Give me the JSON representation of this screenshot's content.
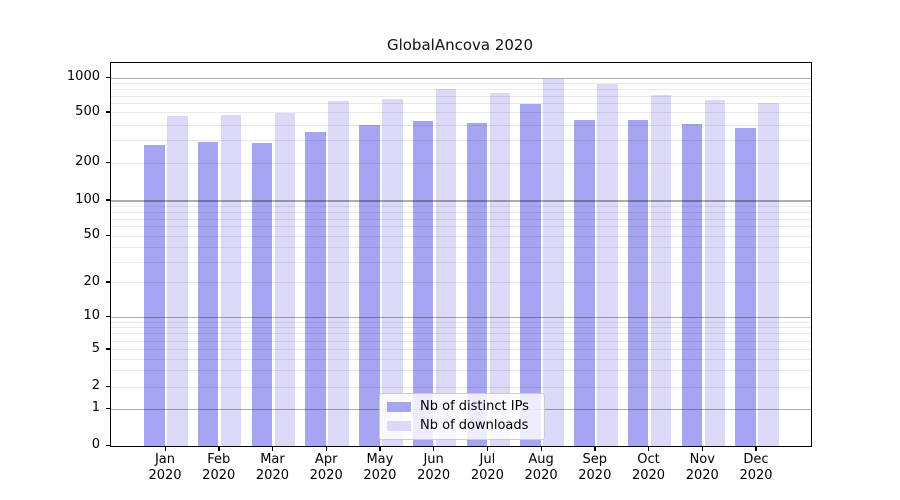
{
  "chart_data": {
    "type": "bar",
    "title": "GlobalAncova 2020",
    "categories": [
      "Jan",
      "Feb",
      "Mar",
      "Apr",
      "May",
      "Jun",
      "Jul",
      "Aug",
      "Sep",
      "Oct",
      "Nov",
      "Dec"
    ],
    "x_year_label": "2020",
    "series": [
      {
        "name": "Nb of distinct IPs",
        "color": "#a5a5f2",
        "values": [
          280,
          293,
          287,
          350,
          400,
          430,
          415,
          600,
          440,
          437,
          406,
          378
        ]
      },
      {
        "name": "Nb of downloads",
        "color": "#dadaf8",
        "values": [
          473,
          482,
          500,
          630,
          655,
          800,
          748,
          985,
          893,
          710,
          648,
          615
        ]
      }
    ],
    "y_tick_labels": [
      "0",
      "1",
      "2",
      "5",
      "10",
      "20",
      "50",
      "100",
      "200",
      "500",
      "1000"
    ],
    "y_tick_values": [
      0,
      1,
      2,
      5,
      10,
      20,
      50,
      100,
      200,
      500,
      1000
    ],
    "y_scale": "log-like",
    "scale_anchors": [
      [
        0,
        0
      ],
      [
        1,
        0.0966
      ],
      [
        2,
        0.154
      ],
      [
        5,
        0.2507
      ],
      [
        10,
        0.3368
      ],
      [
        20,
        0.4256
      ],
      [
        50,
        0.5483
      ],
      [
        100,
        0.6397
      ],
      [
        200,
        0.7389
      ],
      [
        500,
        0.8695
      ],
      [
        1000,
        0.9608
      ]
    ],
    "grid": {
      "major": [
        1,
        10,
        100,
        1000
      ],
      "minor": [
        2,
        3,
        4,
        5,
        6,
        7,
        8,
        9,
        20,
        30,
        40,
        50,
        60,
        70,
        80,
        90,
        200,
        300,
        400,
        500,
        600,
        700,
        800,
        900
      ]
    },
    "legend_position": "lower-center-inside",
    "colors": {
      "background": "#ffffff",
      "spine": "#000000",
      "major_grid": "rgba(0,0,0,0.32)",
      "minor_grid": "rgba(0,0,0,0.085)"
    }
  }
}
